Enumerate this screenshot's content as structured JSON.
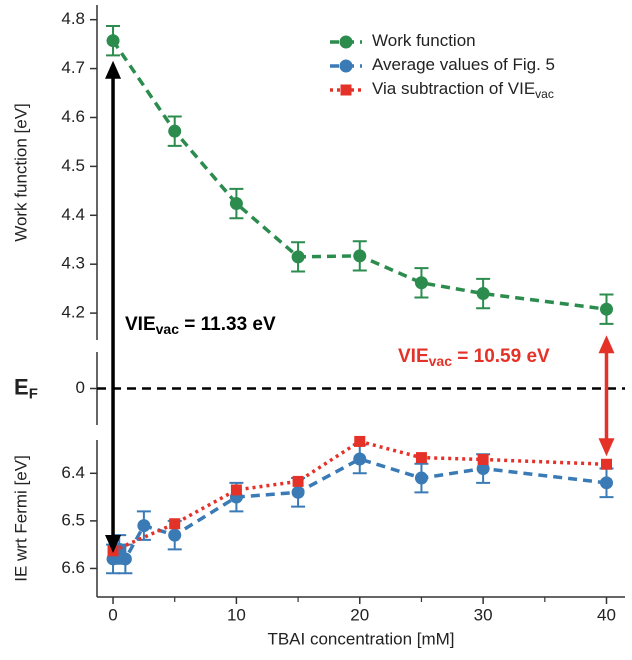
{
  "chart_data": [
    {
      "type": "line",
      "ylabel": "Work function [eV]",
      "xlim": [
        -1.3,
        41.5
      ],
      "ylim": [
        4.145,
        4.83
      ],
      "yticks": [
        4.2,
        4.3,
        4.4,
        4.5,
        4.6,
        4.7,
        4.8
      ],
      "legend": "top-right",
      "series": [
        {
          "name": "Work function",
          "color": "#2b8c4e",
          "linestyle": "dashed",
          "marker": "circle",
          "x": [
            0,
            5,
            10,
            15,
            20,
            25,
            30,
            40
          ],
          "values": [
            4.757,
            4.572,
            4.424,
            4.315,
            4.317,
            4.262,
            4.24,
            4.208
          ],
          "errors": [
            0.03,
            0.03,
            0.03,
            0.03,
            0.03,
            0.03,
            0.03,
            0.03
          ]
        }
      ],
      "annotations": [
        {
          "text": "VIE",
          "sub": "vac",
          "rest": " = 11.33 eV",
          "color": "#000000"
        }
      ]
    },
    {
      "type": "line",
      "ylabel": "E",
      "ylabel_sub": "F",
      "xlim": [
        -1.3,
        41.5
      ],
      "ylim": [
        -1,
        1
      ],
      "yticks": [
        0
      ],
      "hline": 0,
      "annotations": [
        {
          "text": "VIE",
          "sub": "vac",
          "rest": " = 10.59 eV",
          "color": "#e53228"
        }
      ]
    },
    {
      "type": "line",
      "ylabel": "IE wrt Fermi [eV]",
      "xlabel": "TBAI concentration [mM]",
      "xlim": [
        -1.3,
        41.5
      ],
      "ylim": [
        6.33,
        6.66
      ],
      "inverted": true,
      "yticks": [
        6.4,
        6.5,
        6.6
      ],
      "xticks": [
        0,
        10,
        20,
        30,
        40
      ],
      "xminorticks": [
        5,
        15,
        25,
        35
      ],
      "series": [
        {
          "name": "Average values of Fig. 5",
          "color": "#3a7bb6",
          "linestyle": "dashed",
          "marker": "circle",
          "x": [
            0,
            0.5,
            1,
            2.5,
            5,
            10,
            15,
            20,
            25,
            30,
            40
          ],
          "values": [
            6.58,
            6.56,
            6.58,
            6.51,
            6.53,
            6.45,
            6.44,
            6.37,
            6.41,
            6.39,
            6.42
          ],
          "errors": [
            0.03,
            0.03,
            0.03,
            0.03,
            0.03,
            0.03,
            0.03,
            0.03,
            0.03,
            0.03,
            0.03
          ]
        },
        {
          "name": "Via subtraction of VIE",
          "name_sub": "vac",
          "color": "#e53228",
          "linestyle": "dotted",
          "marker": "square",
          "x": [
            0,
            5,
            10,
            15,
            20,
            25,
            30,
            40
          ],
          "values": [
            6.563,
            6.506,
            6.435,
            6.417,
            6.333,
            6.367,
            6.371,
            6.381
          ]
        }
      ]
    }
  ]
}
